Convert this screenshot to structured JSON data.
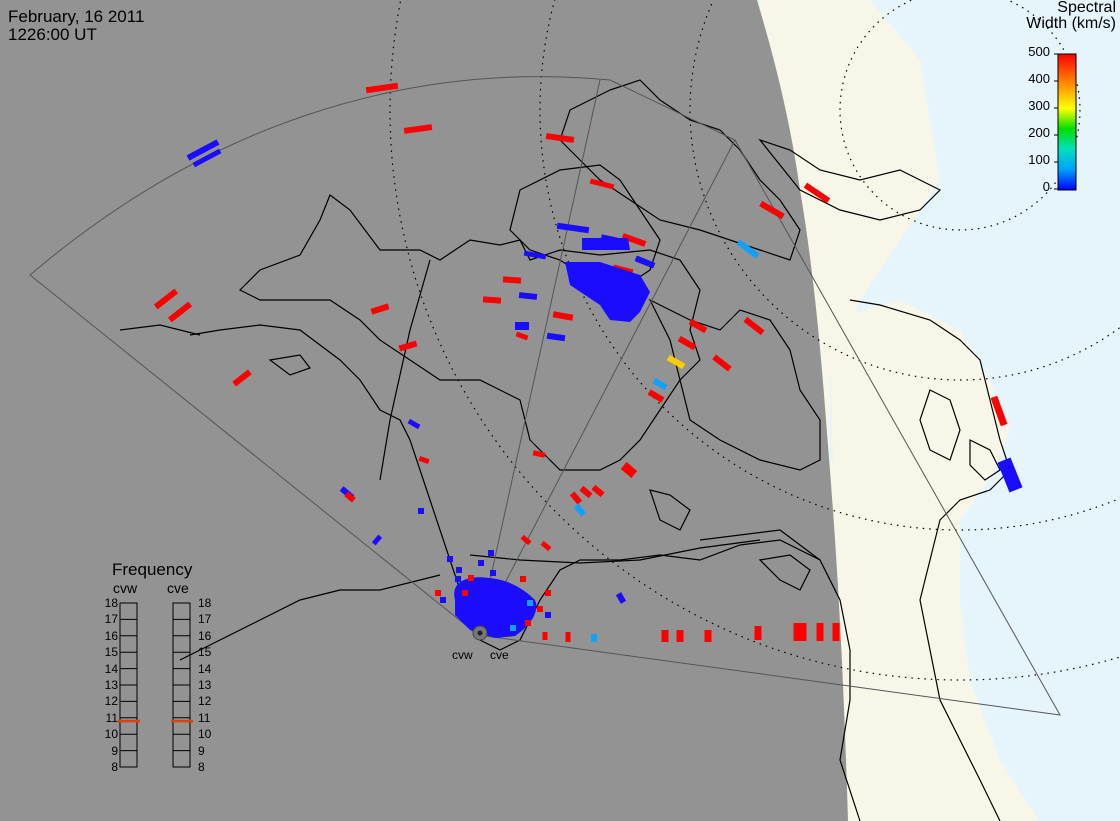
{
  "header": {
    "date": "February, 16 2011",
    "time": "1226:00 UT"
  },
  "colorbar": {
    "title_line1": "Spectral",
    "title_line2": "Width (km/s)",
    "ticks": [
      "500",
      "400",
      "300",
      "200",
      "100",
      "0"
    ],
    "min": 0,
    "max": 500,
    "colors": [
      "#ff0000",
      "#ffa000",
      "#ffff00",
      "#00e000",
      "#00e0c0",
      "#00a0ff",
      "#0000ff"
    ]
  },
  "frequency_panel": {
    "title": "Frequency",
    "radars": [
      "cvw",
      "cve"
    ],
    "ticks": [
      "18",
      "17",
      "16",
      "15",
      "14",
      "13",
      "12",
      "11",
      "10",
      "9",
      "8"
    ],
    "current_mhz": [
      10.8,
      10.8
    ],
    "indicator_color": "#e04000"
  },
  "radars": [
    {
      "name": "cvw",
      "label": "cvw"
    },
    {
      "name": "cve",
      "label": "cve"
    }
  ],
  "colors": {
    "night": "#939393",
    "day": "#f8f6e8",
    "ocean_day": "#e6f4fc",
    "coast": "#000000"
  }
}
